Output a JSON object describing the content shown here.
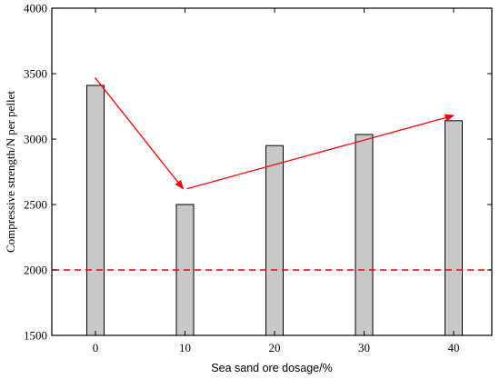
{
  "chart_data": {
    "type": "bar",
    "categories": [
      "0",
      "10",
      "20",
      "30",
      "40"
    ],
    "values": [
      3410,
      2500,
      2950,
      3035,
      3140
    ],
    "xlabel": "Sea sand ore dosage/%",
    "ylabel": "Compressive strength/N per pellet",
    "ylim": [
      1500,
      4000
    ],
    "yticks": [
      "1500",
      "2000",
      "2500",
      "3000",
      "3500",
      "4000"
    ],
    "reference_line": {
      "value": 2000,
      "style": "dashed",
      "color": "#ff0000"
    },
    "trend_arrows": [
      {
        "from": [
          -0.05,
          3470
        ],
        "to": [
          9.8,
          2620
        ],
        "color": "#ff0000"
      },
      {
        "from": [
          10.2,
          2620
        ],
        "to": [
          40,
          3180
        ],
        "color": "#ff0000"
      }
    ],
    "bar_fill": "#c8c8c8",
    "bar_stroke": "#000000",
    "grid": false,
    "legend": "none"
  }
}
